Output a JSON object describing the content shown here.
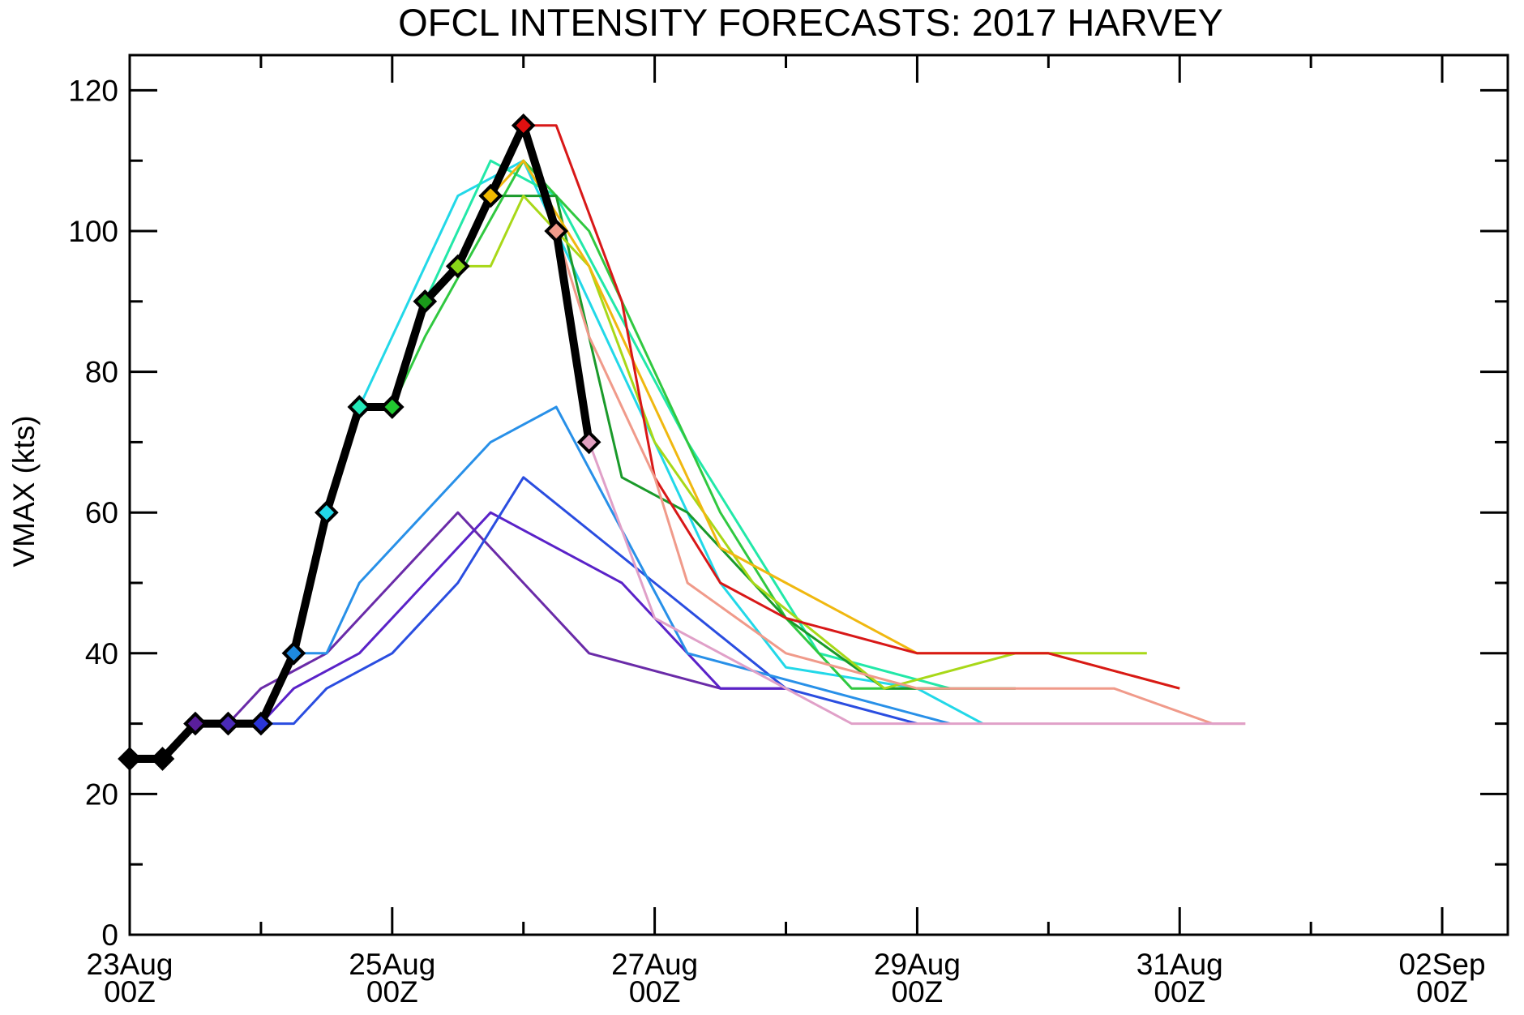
{
  "chart_data": {
    "type": "line",
    "title": "OFCL INTENSITY FORECASTS: 2017 HARVEY",
    "xlabel": "",
    "ylabel": "VMAX (kts)",
    "xlim": [
      "2017-08-23T00Z",
      "2017-09-02T12Z"
    ],
    "ylim": [
      0,
      125
    ],
    "x_ticks": [
      {
        "date": "23Aug",
        "hour": "00Z"
      },
      {
        "date": "25Aug",
        "hour": "00Z"
      },
      {
        "date": "27Aug",
        "hour": "00Z"
      },
      {
        "date": "29Aug",
        "hour": "00Z"
      },
      {
        "date": "31Aug",
        "hour": "00Z"
      },
      {
        "date": "02Sep",
        "hour": "00Z"
      }
    ],
    "y_ticks": [
      0,
      20,
      40,
      60,
      80,
      100,
      120
    ],
    "grid": false,
    "best_track": {
      "color": "#000000",
      "points": [
        {
          "t": "2017-08-23T00Z",
          "v": 25,
          "marker": "#000000"
        },
        {
          "t": "2017-08-23T06Z",
          "v": 25,
          "marker": "#000000"
        },
        {
          "t": "2017-08-23T12Z",
          "v": 30,
          "marker": "#5a1e9c"
        },
        {
          "t": "2017-08-23T18Z",
          "v": 30,
          "marker": "#4a2ab8"
        },
        {
          "t": "2017-08-24T00Z",
          "v": 30,
          "marker": "#2a35d8"
        },
        {
          "t": "2017-08-24T06Z",
          "v": 40,
          "marker": "#1e8ae0"
        },
        {
          "t": "2017-08-24T12Z",
          "v": 60,
          "marker": "#22d8e8"
        },
        {
          "t": "2017-08-24T18Z",
          "v": 75,
          "marker": "#22e8b8"
        },
        {
          "t": "2017-08-25T00Z",
          "v": 75,
          "marker": "#22c830"
        },
        {
          "t": "2017-08-25T06Z",
          "v": 90,
          "marker": "#1a9a1a"
        },
        {
          "t": "2017-08-25T12Z",
          "v": 95,
          "marker": "#88d818"
        },
        {
          "t": "2017-08-25T18Z",
          "v": 105,
          "marker": "#f0b800"
        },
        {
          "t": "2017-08-26T00Z",
          "v": 115,
          "marker": "#e01010"
        },
        {
          "t": "2017-08-26T06Z",
          "v": 100,
          "marker": "#f09a8a"
        },
        {
          "t": "2017-08-26T12Z",
          "v": 70,
          "marker": "#e0a0c0"
        }
      ]
    },
    "series": [
      {
        "color": "#6a2ba8",
        "points": [
          [
            "2017-08-23T12Z",
            30
          ],
          [
            "2017-08-23T18Z",
            30
          ],
          [
            "2017-08-24T00Z",
            35
          ],
          [
            "2017-08-24T12Z",
            40
          ],
          [
            "2017-08-25T00Z",
            50
          ],
          [
            "2017-08-25T12Z",
            60
          ],
          [
            "2017-08-26T00Z",
            50
          ],
          [
            "2017-08-26T12Z",
            40
          ],
          [
            "2017-08-27T12Z",
            35
          ],
          [
            "2017-08-28T00Z",
            35
          ]
        ]
      },
      {
        "color": "#5a22c8",
        "points": [
          [
            "2017-08-23T18Z",
            30
          ],
          [
            "2017-08-24T00Z",
            30
          ],
          [
            "2017-08-24T06Z",
            35
          ],
          [
            "2017-08-24T18Z",
            40
          ],
          [
            "2017-08-25T06Z",
            50
          ],
          [
            "2017-08-25T18Z",
            60
          ],
          [
            "2017-08-26T18Z",
            50
          ],
          [
            "2017-08-27T12Z",
            35
          ],
          [
            "2017-08-28T00Z",
            35
          ]
        ]
      },
      {
        "color": "#2a4de0",
        "points": [
          [
            "2017-08-24T00Z",
            30
          ],
          [
            "2017-08-24T06Z",
            30
          ],
          [
            "2017-08-24T12Z",
            35
          ],
          [
            "2017-08-25T00Z",
            40
          ],
          [
            "2017-08-25T12Z",
            50
          ],
          [
            "2017-08-26T00Z",
            65
          ],
          [
            "2017-08-27T00Z",
            50
          ],
          [
            "2017-08-28T00Z",
            35
          ],
          [
            "2017-08-29T00Z",
            30
          ]
        ]
      },
      {
        "color": "#2890e8",
        "points": [
          [
            "2017-08-24T06Z",
            40
          ],
          [
            "2017-08-24T12Z",
            40
          ],
          [
            "2017-08-24T18Z",
            50
          ],
          [
            "2017-08-25T18Z",
            70
          ],
          [
            "2017-08-26T06Z",
            75
          ],
          [
            "2017-08-27T06Z",
            40
          ],
          [
            "2017-08-28T06Z",
            35
          ],
          [
            "2017-08-29T06Z",
            30
          ]
        ]
      },
      {
        "color": "#22d8e8",
        "points": [
          [
            "2017-08-24T12Z",
            60
          ],
          [
            "2017-08-24T18Z",
            75
          ],
          [
            "2017-08-25T00Z",
            85
          ],
          [
            "2017-08-25T12Z",
            105
          ],
          [
            "2017-08-26T00Z",
            110
          ],
          [
            "2017-08-26T12Z",
            90
          ],
          [
            "2017-08-27T12Z",
            50
          ],
          [
            "2017-08-28T00Z",
            38
          ],
          [
            "2017-08-29T00Z",
            35
          ],
          [
            "2017-08-29T12Z",
            30
          ]
        ]
      },
      {
        "color": "#22e8a8",
        "points": [
          [
            "2017-08-24T18Z",
            75
          ],
          [
            "2017-08-25T00Z",
            75
          ],
          [
            "2017-08-25T06Z",
            90
          ],
          [
            "2017-08-25T18Z",
            110
          ],
          [
            "2017-08-26T06Z",
            105
          ],
          [
            "2017-08-27T06Z",
            70
          ],
          [
            "2017-08-28T06Z",
            40
          ],
          [
            "2017-08-29T06Z",
            35
          ]
        ]
      },
      {
        "color": "#30c840",
        "points": [
          [
            "2017-08-25T00Z",
            75
          ],
          [
            "2017-08-25T06Z",
            85
          ],
          [
            "2017-08-26T00Z",
            110
          ],
          [
            "2017-08-26T12Z",
            100
          ],
          [
            "2017-08-27T12Z",
            60
          ],
          [
            "2017-08-28T00Z",
            45
          ],
          [
            "2017-08-28T12Z",
            35
          ],
          [
            "2017-08-29T06Z",
            35
          ]
        ]
      },
      {
        "color": "#1a9a2a",
        "points": [
          [
            "2017-08-25T06Z",
            90
          ],
          [
            "2017-08-25T12Z",
            95
          ],
          [
            "2017-08-25T18Z",
            105
          ],
          [
            "2017-08-26T06Z",
            105
          ],
          [
            "2017-08-26T18Z",
            65
          ],
          [
            "2017-08-27T06Z",
            60
          ],
          [
            "2017-08-28T00Z",
            45
          ],
          [
            "2017-08-28T18Z",
            35
          ],
          [
            "2017-08-29T18Z",
            35
          ]
        ]
      },
      {
        "color": "#a8d818",
        "points": [
          [
            "2017-08-25T12Z",
            95
          ],
          [
            "2017-08-25T18Z",
            95
          ],
          [
            "2017-08-26T00Z",
            105
          ],
          [
            "2017-08-26T12Z",
            95
          ],
          [
            "2017-08-27T00Z",
            70
          ],
          [
            "2017-08-27T18Z",
            50
          ],
          [
            "2017-08-28T18Z",
            35
          ],
          [
            "2017-08-29T18Z",
            40
          ],
          [
            "2017-08-30T18Z",
            40
          ]
        ]
      },
      {
        "color": "#f0b810",
        "points": [
          [
            "2017-08-25T18Z",
            105
          ],
          [
            "2017-08-26T00Z",
            110
          ],
          [
            "2017-08-26T12Z",
            95
          ],
          [
            "2017-08-27T00Z",
            75
          ],
          [
            "2017-08-27T12Z",
            55
          ],
          [
            "2017-08-28T00Z",
            50
          ],
          [
            "2017-08-29T00Z",
            40
          ],
          [
            "2017-08-30T00Z",
            40
          ],
          [
            "2017-08-31T00Z",
            35
          ]
        ]
      },
      {
        "color": "#d81818",
        "points": [
          [
            "2017-08-26T00Z",
            115
          ],
          [
            "2017-08-26T06Z",
            115
          ],
          [
            "2017-08-26T18Z",
            90
          ],
          [
            "2017-08-27T00Z",
            65
          ],
          [
            "2017-08-27T12Z",
            50
          ],
          [
            "2017-08-28T00Z",
            45
          ],
          [
            "2017-08-29T00Z",
            40
          ],
          [
            "2017-08-30T00Z",
            40
          ],
          [
            "2017-08-31T00Z",
            35
          ]
        ]
      },
      {
        "color": "#f09a8a",
        "points": [
          [
            "2017-08-26T06Z",
            100
          ],
          [
            "2017-08-26T12Z",
            85
          ],
          [
            "2017-08-27T00Z",
            65
          ],
          [
            "2017-08-27T06Z",
            50
          ],
          [
            "2017-08-28T00Z",
            40
          ],
          [
            "2017-08-29T00Z",
            35
          ],
          [
            "2017-08-30T00Z",
            35
          ],
          [
            "2017-08-30T12Z",
            35
          ],
          [
            "2017-08-31T06Z",
            30
          ],
          [
            "2017-08-31T12Z",
            30
          ]
        ]
      },
      {
        "color": "#e0a0c8",
        "points": [
          [
            "2017-08-26T12Z",
            70
          ],
          [
            "2017-08-27T00Z",
            45
          ],
          [
            "2017-08-27T12Z",
            40
          ],
          [
            "2017-08-28T12Z",
            30
          ],
          [
            "2017-08-29T12Z",
            30
          ],
          [
            "2017-08-30T12Z",
            30
          ],
          [
            "2017-08-31T12Z",
            30
          ]
        ]
      }
    ]
  }
}
